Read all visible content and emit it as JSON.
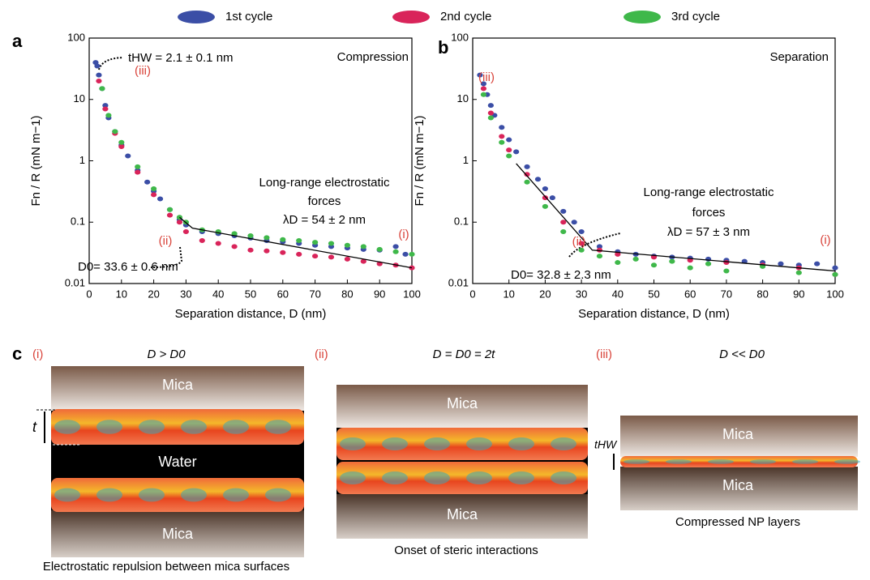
{
  "legend": [
    {
      "name": "1st cycle",
      "color": "#3b4ea6"
    },
    {
      "name": "2nd cycle",
      "color": "#d9245a"
    },
    {
      "name": "3rd cycle",
      "color": "#3fb84a"
    }
  ],
  "chart_data": [
    {
      "type": "scatter",
      "panel": "a",
      "xlabel": "Separation distance, D (nm)",
      "ylabel": "Fn / R (mN m−1)",
      "log_y": true,
      "xlim": [
        0,
        100
      ],
      "xticks": [
        0,
        10,
        20,
        30,
        40,
        50,
        60,
        70,
        80,
        90,
        100
      ],
      "ylim": [
        0.01,
        100
      ],
      "yticks": [
        0.01,
        0.1,
        1,
        10,
        100
      ],
      "series": [
        {
          "color": "#3b4ea6",
          "x": [
            2,
            2.5,
            3,
            4,
            5,
            6,
            8,
            10,
            12,
            15,
            18,
            20,
            22,
            25,
            28,
            30,
            35,
            40,
            45,
            50,
            55,
            60,
            65,
            70,
            75,
            80,
            85,
            90,
            95,
            98
          ],
          "values": [
            40,
            35,
            25,
            15,
            8,
            5,
            3,
            1.8,
            1.2,
            0.7,
            0.45,
            0.32,
            0.24,
            0.16,
            0.11,
            0.09,
            0.07,
            0.065,
            0.06,
            0.055,
            0.05,
            0.048,
            0.045,
            0.042,
            0.04,
            0.038,
            0.036,
            0.035,
            0.04,
            0.03
          ]
        },
        {
          "color": "#d9245a",
          "x": [
            3,
            5,
            8,
            10,
            15,
            20,
            25,
            28,
            30,
            35,
            40,
            45,
            50,
            55,
            60,
            65,
            70,
            75,
            80,
            85,
            90,
            95,
            100
          ],
          "values": [
            20,
            7,
            2.8,
            1.7,
            0.65,
            0.28,
            0.13,
            0.1,
            0.07,
            0.05,
            0.045,
            0.04,
            0.035,
            0.034,
            0.032,
            0.03,
            0.028,
            0.027,
            0.025,
            0.023,
            0.021,
            0.02,
            0.018
          ]
        },
        {
          "color": "#3fb84a",
          "x": [
            4,
            6,
            8,
            10,
            15,
            20,
            25,
            28,
            30,
            35,
            40,
            45,
            50,
            55,
            60,
            65,
            70,
            75,
            80,
            85,
            90,
            95,
            100
          ],
          "values": [
            15,
            5.5,
            3,
            2,
            0.8,
            0.35,
            0.16,
            0.12,
            0.1,
            0.075,
            0.07,
            0.065,
            0.06,
            0.056,
            0.052,
            0.05,
            0.047,
            0.045,
            0.042,
            0.04,
            0.036,
            0.033,
            0.03
          ]
        }
      ],
      "fit": {
        "color": "#000000",
        "x": [
          28,
          32,
          100
        ],
        "values": [
          0.12,
          0.08,
          0.018
        ]
      },
      "annotations": [
        {
          "text": "tHW = 2.1 ± 0.1 nm",
          "color": "#000000"
        },
        {
          "text": "(iii)",
          "color": "#d9443b"
        },
        {
          "text": "Compression",
          "color": "#000000"
        },
        {
          "text": "Long-range electrostatic",
          "color": "#000000"
        },
        {
          "text": "forces",
          "color": "#000000"
        },
        {
          "text": "λD = 54 ± 2 nm",
          "color": "#000000"
        },
        {
          "text": "(ii)",
          "color": "#d9443b"
        },
        {
          "text": "(i)",
          "color": "#d9443b"
        },
        {
          "text": "D0= 33.6 ± 0.6 nm",
          "color": "#000000"
        }
      ]
    },
    {
      "type": "scatter",
      "panel": "b",
      "xlabel": "Separation distance, D (nm)",
      "ylabel": "Fn / R (mN m−1)",
      "log_y": true,
      "xlim": [
        0,
        100
      ],
      "xticks": [
        0,
        10,
        20,
        30,
        40,
        50,
        60,
        70,
        80,
        90,
        100
      ],
      "ylim": [
        0.01,
        100
      ],
      "yticks": [
        0.01,
        0.1,
        1,
        10,
        100
      ],
      "series": [
        {
          "color": "#3b4ea6",
          "x": [
            2,
            3,
            4,
            5,
            6,
            8,
            10,
            12,
            15,
            18,
            20,
            22,
            25,
            28,
            30,
            35,
            40,
            45,
            50,
            55,
            60,
            65,
            70,
            75,
            80,
            85,
            90,
            95,
            100
          ],
          "values": [
            25,
            18,
            12,
            8,
            5.5,
            3.5,
            2.2,
            1.4,
            0.8,
            0.5,
            0.35,
            0.25,
            0.15,
            0.1,
            0.07,
            0.04,
            0.033,
            0.03,
            0.028,
            0.027,
            0.026,
            0.025,
            0.024,
            0.023,
            0.022,
            0.021,
            0.02,
            0.021,
            0.018
          ]
        },
        {
          "color": "#d9245a",
          "x": [
            3,
            5,
            8,
            10,
            15,
            20,
            25,
            30,
            35,
            40,
            50,
            60,
            70,
            80,
            90,
            100
          ],
          "values": [
            15,
            6,
            2.5,
            1.5,
            0.6,
            0.25,
            0.1,
            0.045,
            0.035,
            0.03,
            0.027,
            0.024,
            0.022,
            0.02,
            0.018,
            0.014
          ]
        },
        {
          "color": "#3fb84a",
          "x": [
            3,
            5,
            8,
            10,
            15,
            20,
            25,
            30,
            35,
            40,
            45,
            50,
            55,
            60,
            65,
            70,
            80,
            90,
            100
          ],
          "values": [
            12,
            5,
            2,
            1.2,
            0.45,
            0.18,
            0.07,
            0.035,
            0.028,
            0.022,
            0.025,
            0.02,
            0.023,
            0.018,
            0.021,
            0.016,
            0.019,
            0.015,
            0.014
          ]
        }
      ],
      "fit": {
        "color": "#000000",
        "x": [
          12,
          33,
          100
        ],
        "values": [
          0.9,
          0.035,
          0.016
        ]
      },
      "annotations": [
        {
          "text": "(iii)",
          "color": "#d9443b"
        },
        {
          "text": "Separation",
          "color": "#000000"
        },
        {
          "text": "Long-range electrostatic",
          "color": "#000000"
        },
        {
          "text": "forces",
          "color": "#000000"
        },
        {
          "text": "λD = 57 ± 3 nm",
          "color": "#000000"
        },
        {
          "text": "(ii)",
          "color": "#d9443b"
        },
        {
          "text": "(i)",
          "color": "#d9443b"
        },
        {
          "text": "D0= 32.8 ± 2.3 nm",
          "color": "#000000"
        }
      ]
    }
  ],
  "panel_c": {
    "label": "c",
    "panels": [
      {
        "numeral": "(i)",
        "condition": "D > D0",
        "top": "Mica",
        "middle": "Water",
        "bottom": "Mica",
        "thickness": "t",
        "caption": "Electrostatic repulsion between mica surfaces"
      },
      {
        "numeral": "(ii)",
        "condition": "D =  D0 = 2t",
        "top": "Mica",
        "bottom": "Mica",
        "caption": "Onset of steric interactions"
      },
      {
        "numeral": "(iii)",
        "condition": "D << D0",
        "top": "Mica",
        "bottom": "Mica",
        "thickness": "tHW",
        "caption": "Compressed NP layers"
      }
    ]
  }
}
